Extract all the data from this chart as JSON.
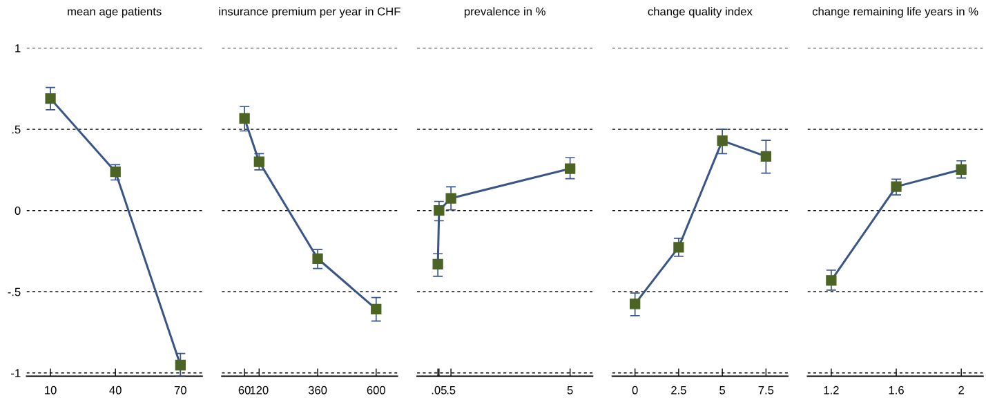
{
  "chart_data": [
    {
      "type": "line",
      "title": "mean age patients",
      "x": [
        10,
        40,
        70
      ],
      "series": [
        {
          "color": "#3a5587",
          "colors": [
            "#4b6424",
            "#4b6424",
            "#4b6424"
          ],
          "values": [
            0.689,
            0.238,
            -0.952
          ],
          "errors": [
            [
              0.62,
              0.757
            ],
            [
              0.188,
              0.282
            ],
            [
              -1.02,
              -0.88
            ]
          ]
        }
      ],
      "xlim": [
        -1,
        80
      ],
      "xticks": [
        10,
        40,
        70
      ],
      "ylim": [
        -1.02,
        1
      ],
      "yticks": [
        {
          "value": 1,
          "label": "1"
        },
        {
          "value": 0.5,
          "label": ".5"
        },
        {
          "value": 0,
          "label": "0"
        },
        {
          "value": -0.5,
          "label": "-.5"
        },
        {
          "value": -1,
          "label": "-1"
        }
      ],
      "grid": "y",
      "marker": "square",
      "line_style": "solid"
    },
    {
      "type": "line",
      "title": "insurance premium per year in CHF",
      "x": [
        60,
        120,
        360,
        600
      ],
      "series": [
        {
          "color": "#3a5587",
          "colors": [
            "#4b6424",
            "#4b6424",
            "#4b6424",
            "#4b6424"
          ],
          "values": [
            0.567,
            0.3,
            -0.296,
            -0.607
          ],
          "errors": [
            [
              0.49,
              0.64
            ],
            [
              0.25,
              0.35
            ],
            [
              -0.357,
              -0.24
            ],
            [
              -0.68,
              -0.536
            ]
          ]
        }
      ],
      "xlim": [
        -33,
        687
      ],
      "xticks": [
        60,
        120,
        360,
        600
      ],
      "ylim": [
        -1.02,
        1
      ],
      "yticks": [
        1,
        0.5,
        0,
        -0.5,
        -1
      ],
      "tick_labels": "x",
      "grid": "y",
      "marker": "square",
      "line_style": "solid"
    },
    {
      "type": "line",
      "title": "prevalence in %",
      "x": [
        0.005,
        0.05,
        0.5,
        5
      ],
      "series": [
        {
          "color": "#3a5587",
          "colors": [
            "#4b6424",
            "#4b6424",
            "#4b6424",
            "#4b6424"
          ],
          "values": [
            -0.33,
            0.0,
            0.075,
            0.258
          ],
          "errors": [
            [
              -0.405,
              -0.266
            ],
            [
              -0.063,
              0.056
            ],
            [
              0.004,
              0.146
            ],
            [
              0.196,
              0.325
            ]
          ]
        }
      ],
      "xlim": [
        -0.78,
        5.85
      ],
      "xticks": [
        {
          "value": 0.005,
          "label": null
        },
        {
          "value": 0.05,
          "label": ".05"
        },
        {
          "value": 0.5,
          "label": ".5"
        },
        5
      ],
      "ylim": [
        -1.02,
        1
      ],
      "yticks": [
        1,
        0.5,
        0,
        -0.5,
        -1
      ],
      "tick_labels": "x",
      "grid": "y",
      "marker": "square",
      "line_style": "solid"
    },
    {
      "type": "line",
      "title": "change quality index",
      "x": [
        0,
        2.5,
        5,
        7.5
      ],
      "series": [
        {
          "color": "#3a5587",
          "colors": [
            "#4b6424",
            "#4b6424",
            "#4b6424",
            "#4b6424"
          ],
          "values": [
            -0.575,
            -0.226,
            0.43,
            0.333
          ],
          "errors": [
            [
              -0.647,
              -0.508
            ],
            [
              -0.282,
              -0.171
            ],
            [
              0.35,
              0.5
            ],
            [
              0.23,
              0.432
            ]
          ]
        }
      ],
      "xlim": [
        -1.3,
        8.75
      ],
      "xticks": [
        0,
        2.5,
        5,
        7.5
      ],
      "ylim": [
        -1.02,
        1
      ],
      "yticks": [
        1,
        0.5,
        0,
        -0.5,
        -1
      ],
      "tick_labels": "x",
      "grid": "y",
      "marker": "square",
      "line_style": "solid"
    },
    {
      "type": "line",
      "title": "change remaining life years in %",
      "x": [
        1.2,
        1.6,
        2
      ],
      "series": [
        {
          "color": "#3a5587",
          "colors": [
            "#4b6424",
            "#4b6424",
            "#4b6424"
          ],
          "values": [
            -0.43,
            0.147,
            0.252
          ],
          "errors": [
            [
              -0.49,
              -0.367
            ],
            [
              0.096,
              0.193
            ],
            [
              0.2,
              0.306
            ]
          ]
        }
      ],
      "xlim": [
        1.054,
        2.134
      ],
      "xticks": [
        1.2,
        1.6,
        2
      ],
      "ylim": [
        -1.02,
        1
      ],
      "yticks": [
        1,
        0.5,
        0,
        -0.5,
        -1
      ],
      "tick_labels": "x",
      "grid": "y",
      "marker": "square",
      "line_style": "solid"
    }
  ]
}
